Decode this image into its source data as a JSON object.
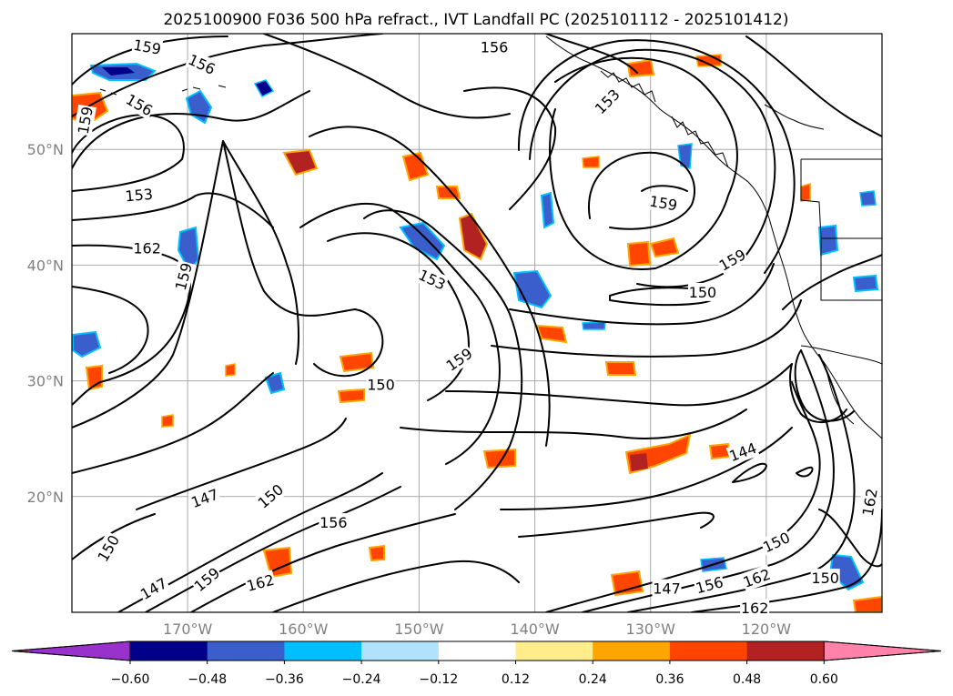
{
  "title": "2025100900 F036 500 hPa refract., IVT Landfall PC (2025101112 - 2025101412)",
  "map": {
    "lon_min": -180,
    "lon_max": -110,
    "lat_min": 10,
    "lat_max": 60,
    "lat_ticks": [
      {
        "value": 20,
        "label": "20°N"
      },
      {
        "value": 30,
        "label": "30°N"
      },
      {
        "value": 40,
        "label": "40°N"
      },
      {
        "value": 50,
        "label": "50°N"
      }
    ],
    "lon_ticks": [
      {
        "value": -170,
        "label": "170°W"
      },
      {
        "value": -160,
        "label": "160°W"
      },
      {
        "value": -150,
        "label": "150°W"
      },
      {
        "value": -140,
        "label": "140°W"
      },
      {
        "value": -130,
        "label": "130°W"
      },
      {
        "value": -120,
        "label": "120°W"
      }
    ]
  },
  "colorbar": {
    "colors": [
      "#9932cc",
      "#00008b",
      "#3a5fcd",
      "#00bfff",
      "#b0e2ff",
      "#ffffff",
      "#ffec8b",
      "#ffa500",
      "#ff4500",
      "#b22222",
      "#ff82ab"
    ],
    "tick_labels": [
      "−0.60",
      "−0.48",
      "−0.36",
      "−0.24",
      "−0.12",
      "0.12",
      "0.24",
      "0.36",
      "0.48",
      "0.60"
    ]
  },
  "contour_labels": [
    {
      "text": "159",
      "lon": -173.5,
      "lat": 58.8,
      "rot": 10
    },
    {
      "text": "156",
      "lon": -168.8,
      "lat": 57.3,
      "rot": 25
    },
    {
      "text": "159",
      "lon": -178.8,
      "lat": 52.5,
      "rot": -80
    },
    {
      "text": "156",
      "lon": -174.2,
      "lat": 53.8,
      "rot": 30
    },
    {
      "text": "153",
      "lon": -174.2,
      "lat": 46.0,
      "rot": -5
    },
    {
      "text": "162",
      "lon": -173.5,
      "lat": 41.4,
      "rot": 0
    },
    {
      "text": "159",
      "lon": -170.3,
      "lat": 39.0,
      "rot": -75
    },
    {
      "text": "156",
      "lon": -143.5,
      "lat": 58.8,
      "rot": 0
    },
    {
      "text": "153",
      "lon": -133.7,
      "lat": 54.1,
      "rot": -45
    },
    {
      "text": "159",
      "lon": -128.9,
      "lat": 45.3,
      "rot": 10
    },
    {
      "text": "159",
      "lon": -122.9,
      "lat": 40.4,
      "rot": -30
    },
    {
      "text": "150",
      "lon": -125.5,
      "lat": 37.6,
      "rot": 0
    },
    {
      "text": "153",
      "lon": -148.9,
      "lat": 38.7,
      "rot": 25
    },
    {
      "text": "159",
      "lon": -146.5,
      "lat": 31.8,
      "rot": -35
    },
    {
      "text": "150",
      "lon": -153.3,
      "lat": 29.6,
      "rot": 0
    },
    {
      "text": "144",
      "lon": -122.0,
      "lat": 23.8,
      "rot": -20
    },
    {
      "text": "147",
      "lon": -168.5,
      "lat": 19.8,
      "rot": -20
    },
    {
      "text": "150",
      "lon": -162.8,
      "lat": 20.0,
      "rot": -40
    },
    {
      "text": "156",
      "lon": -157.4,
      "lat": 17.7,
      "rot": 0
    },
    {
      "text": "150",
      "lon": -176.8,
      "lat": 15.5,
      "rot": -60
    },
    {
      "text": "159",
      "lon": -168.3,
      "lat": 12.8,
      "rot": -40
    },
    {
      "text": "162",
      "lon": -163.7,
      "lat": 12.5,
      "rot": -15
    },
    {
      "text": "147",
      "lon": -172.9,
      "lat": 12.0,
      "rot": -30
    },
    {
      "text": "147",
      "lon": -128.6,
      "lat": 12.0,
      "rot": 0
    },
    {
      "text": "156",
      "lon": -124.9,
      "lat": 12.3,
      "rot": -15
    },
    {
      "text": "162",
      "lon": -120.8,
      "lat": 12.9,
      "rot": -20
    },
    {
      "text": "150",
      "lon": -119.1,
      "lat": 16.0,
      "rot": -25
    },
    {
      "text": "162",
      "lon": -111.0,
      "lat": 19.5,
      "rot": -80
    },
    {
      "text": "150",
      "lon": -114.9,
      "lat": 12.9,
      "rot": 0
    },
    {
      "text": "162",
      "lon": -121.0,
      "lat": 10.3,
      "rot": 0
    }
  ]
}
